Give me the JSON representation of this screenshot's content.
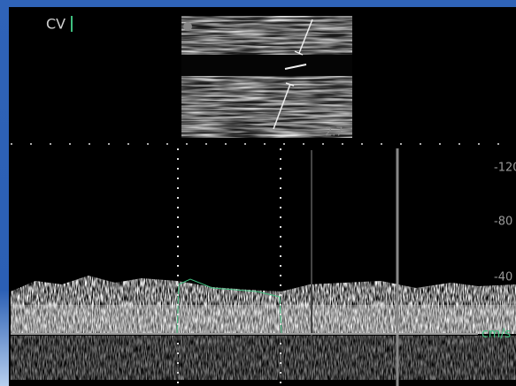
{
  "header": {
    "label": "CV"
  },
  "image": {
    "depth": "2.7"
  },
  "scale": {
    "ticks": [
      "-120",
      "-80",
      "-40"
    ],
    "unit": "cm/s"
  }
}
